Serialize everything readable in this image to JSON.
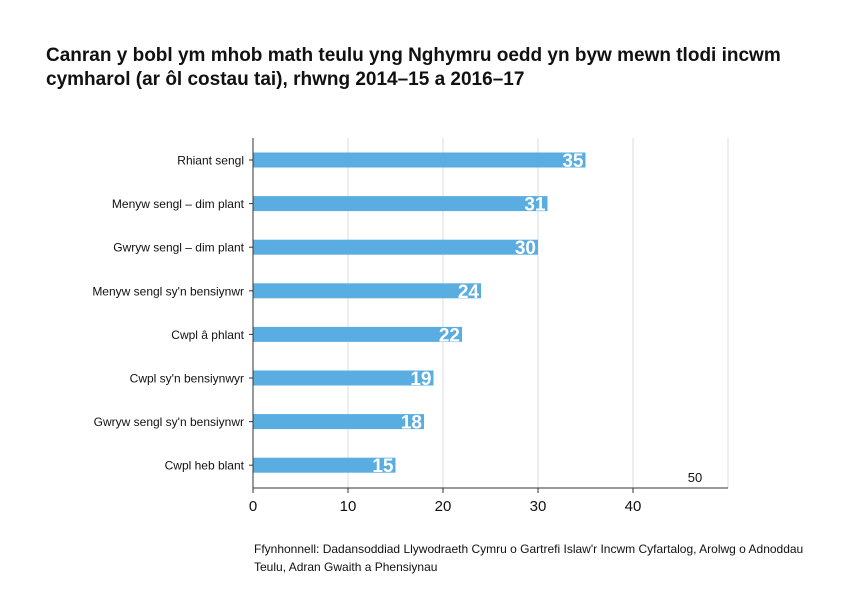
{
  "title": "Canran y bobl ym mhob math teulu yng Nghymru oedd yn byw mewn tlodi incwm cymharol (ar ôl costau tai), rhwng 2014–15 a 2016–17",
  "source": "Ffynhonnell: Dadansoddiad Llywodraeth Cymru o Gartrefi Islaw'r Incwm Cyfartalog, Arolwg o Adnoddau Teulu, Adran Gwaith a Phensiynau",
  "colors": {
    "bar": "#5aade0",
    "grid": "#dddddd",
    "axis": "#333333",
    "label_on_bar": "#ffffff"
  },
  "chart_data": {
    "type": "bar",
    "orientation": "horizontal",
    "categories": [
      "Rhiant sengl",
      "Menyw sengl – dim plant",
      "Gwryw sengl – dim plant",
      "Menyw sengl sy'n bensiynwr",
      "Cwpl â phlant",
      "Cwpl sy'n bensiynwyr",
      "Gwryw sengl sy'n bensiynwr",
      "Cwpl heb blant"
    ],
    "values": [
      35,
      31,
      30,
      24,
      22,
      19,
      18,
      15
    ],
    "xlim": [
      0,
      50
    ],
    "xticks": [
      "0",
      "10",
      "20",
      "30",
      "40",
      "50"
    ],
    "grid": true,
    "title": "",
    "xlabel": "",
    "ylabel": ""
  }
}
